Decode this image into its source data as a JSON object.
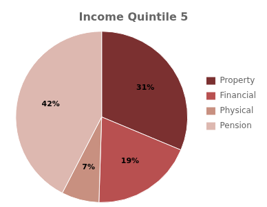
{
  "chart_data": {
    "type": "pie",
    "title": "Income Quintile 5",
    "categories": [
      "Property",
      "Financial",
      "Physical",
      "Pension"
    ],
    "values": [
      31,
      19,
      7,
      42
    ],
    "value_labels": [
      "31%",
      "19%",
      "7%",
      "42%"
    ],
    "colors": [
      "#7B3030",
      "#B85050",
      "#C89080",
      "#DDB8B0"
    ],
    "data_labels": true,
    "legend": "right"
  }
}
